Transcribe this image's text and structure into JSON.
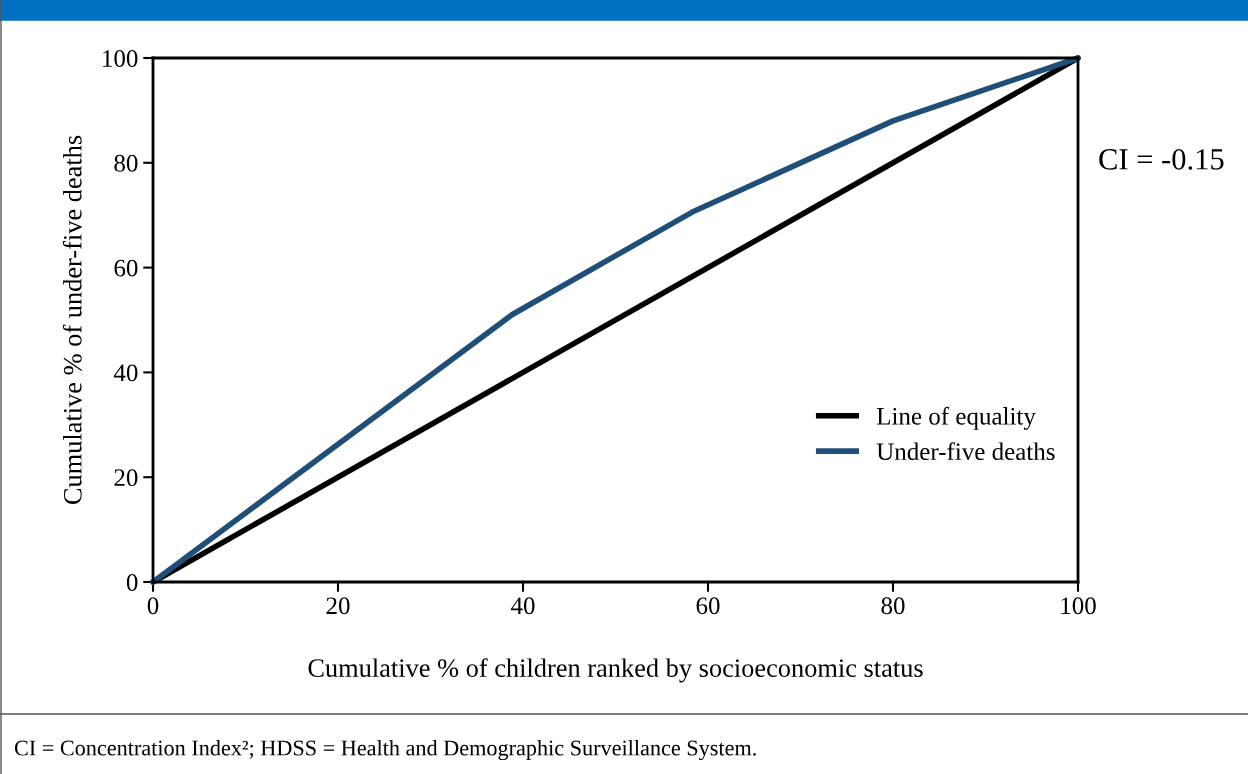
{
  "chart_data": {
    "type": "line",
    "xlabel": "Cumulative % of children ranked by socioeconomic status",
    "ylabel": "Cumulative % of under-five deaths",
    "series": [
      {
        "name": "Line of equality",
        "color": "#000000",
        "x": [
          0,
          100
        ],
        "values": [
          0,
          100
        ]
      },
      {
        "name": "Under-five deaths",
        "color": "#1f4e79",
        "x": [
          0,
          38.8,
          58.3,
          80,
          100
        ],
        "values": [
          0,
          51,
          70.6,
          88,
          100
        ]
      }
    ],
    "xlim": [
      0,
      100
    ],
    "ylim": [
      0,
      100
    ],
    "xticks": [
      0,
      20,
      40,
      60,
      80,
      100
    ],
    "yticks": [
      0,
      20,
      40,
      60,
      80,
      100
    ],
    "grid": false,
    "legend": "bottom right",
    "marker": "none",
    "line_style": "solid",
    "annotations": [
      "CI = -0.15",
      "CI = Concentration Index²; HDSS = Health and Demographic Surveillance System."
    ]
  }
}
